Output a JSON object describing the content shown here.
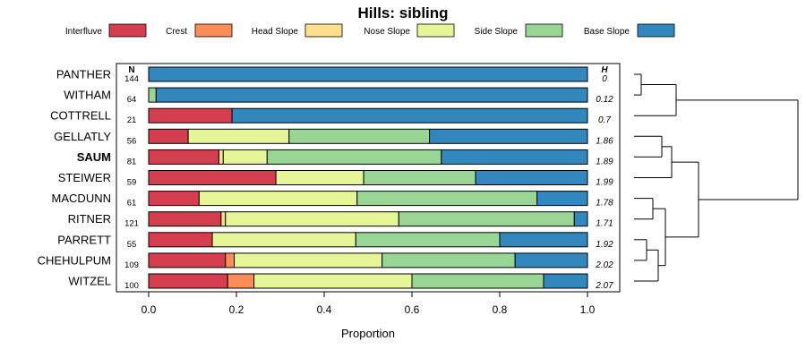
{
  "chart_data": {
    "type": "bar",
    "stacked": true,
    "orientation": "horizontal",
    "title": "Hills: sibling",
    "xlabel": "Proportion",
    "xlim": [
      0,
      1
    ],
    "x_ticks": [
      "0.0",
      "0.2",
      "0.4",
      "0.6",
      "0.8",
      "1.0"
    ],
    "n_header": "N",
    "h_header": "H",
    "legend": [
      {
        "name": "Interfluve",
        "color": "#d53e4f"
      },
      {
        "name": "Crest",
        "color": "#fc8d59"
      },
      {
        "name": "Head Slope",
        "color": "#fee08b"
      },
      {
        "name": "Nose Slope",
        "color": "#e6f598"
      },
      {
        "name": "Side Slope",
        "color": "#99d594"
      },
      {
        "name": "Base Slope",
        "color": "#3288bd"
      }
    ],
    "categories": [
      "PANTHER",
      "WITHAM",
      "COTTRELL",
      "GELLATLY",
      "SAUM",
      "STEIWER",
      "MACDUNN",
      "RITNER",
      "PARRETT",
      "CHEHULPUM",
      "WITZEL"
    ],
    "highlight": "SAUM",
    "n_values": [
      "144",
      "64",
      "21",
      "56",
      "81",
      "59",
      "61",
      "121",
      "55",
      "109",
      "100"
    ],
    "h_values": [
      "0",
      "0.12",
      "0.7",
      "1.86",
      "1.89",
      "1.99",
      "1.78",
      "1.71",
      "1.92",
      "2.02",
      "2.07"
    ],
    "series": [
      {
        "name": "Interfluve",
        "values": [
          0,
          0,
          0.19,
          0.09,
          0.16,
          0.29,
          0.115,
          0.165,
          0.145,
          0.175,
          0.18
        ]
      },
      {
        "name": "Crest",
        "values": [
          0,
          0,
          0,
          0,
          0,
          0,
          0,
          0,
          0,
          0.02,
          0.06
        ]
      },
      {
        "name": "Head Slope",
        "values": [
          0,
          0,
          0,
          0,
          0.01,
          0,
          0,
          0.01,
          0,
          0,
          0
        ]
      },
      {
        "name": "Nose Slope",
        "values": [
          0,
          0,
          0,
          0.23,
          0.1,
          0.2,
          0.36,
          0.395,
          0.327,
          0.337,
          0.36
        ]
      },
      {
        "name": "Side Slope",
        "values": [
          0,
          0.017,
          0,
          0.32,
          0.397,
          0.255,
          0.41,
          0.4,
          0.328,
          0.303,
          0.3
        ]
      },
      {
        "name": "Base Slope",
        "values": [
          1,
          0.983,
          0.81,
          0.36,
          0.333,
          0.255,
          0.115,
          0.03,
          0.2,
          0.165,
          0.1
        ]
      }
    ]
  }
}
